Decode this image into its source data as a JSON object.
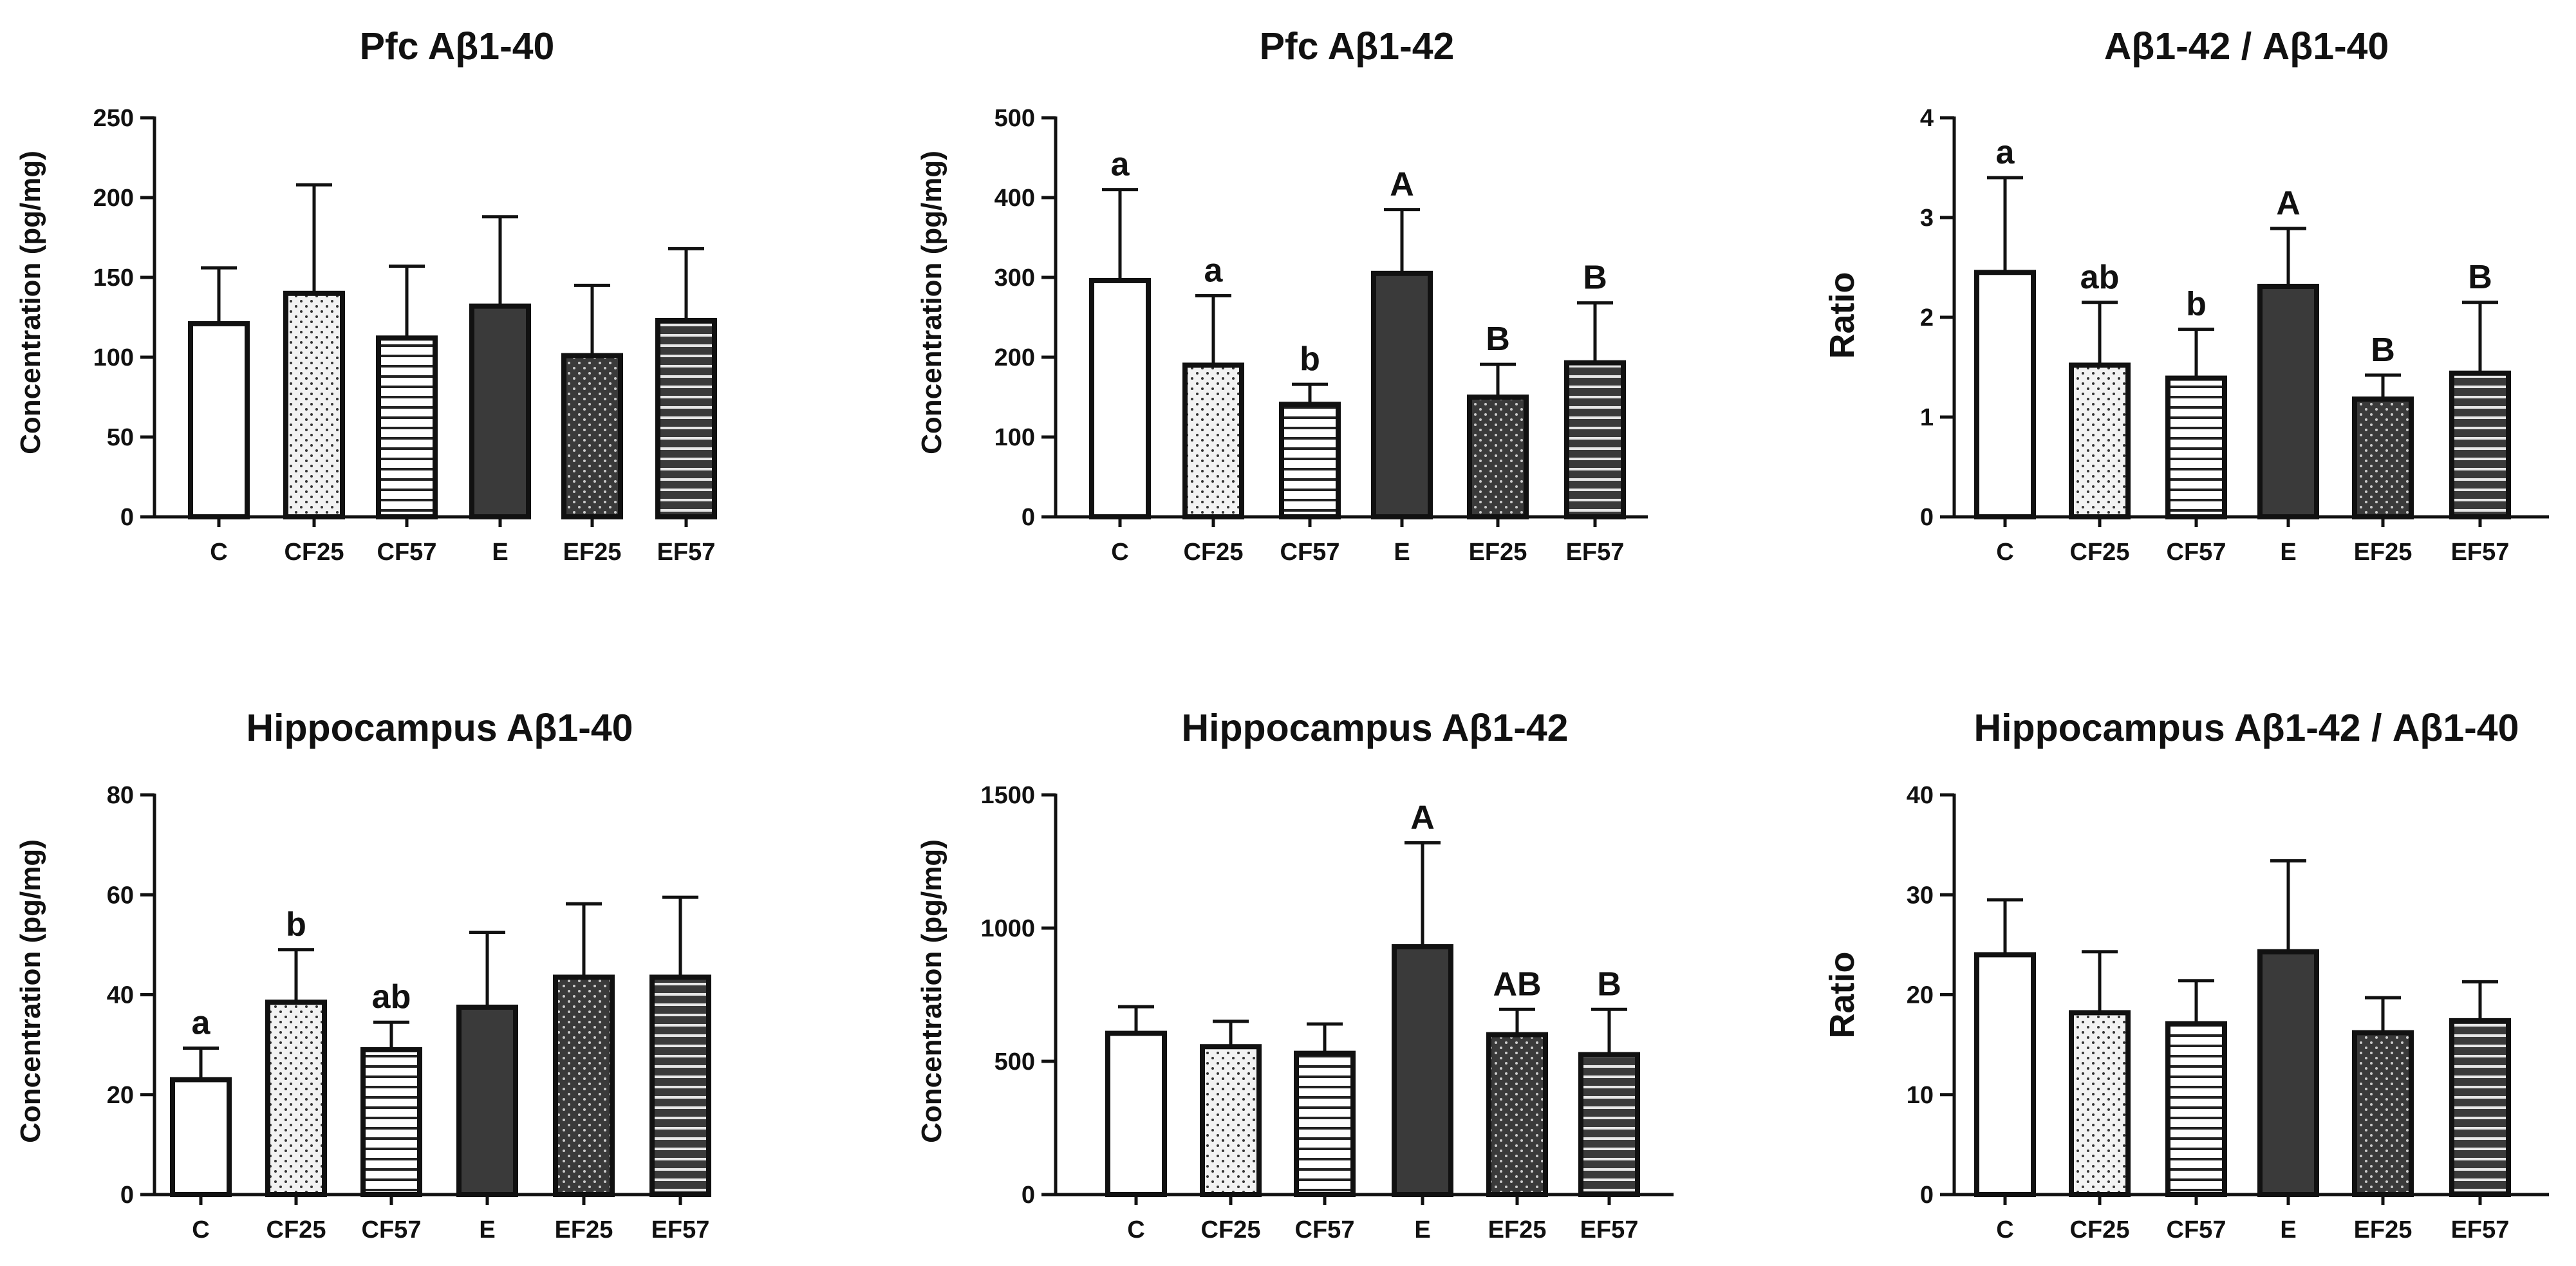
{
  "chart_data": [
    {
      "type": "bar",
      "title": "Pfc Aβ1-40",
      "ylabel": "Concentration (pg/mg)",
      "categories": [
        "C",
        "CF25",
        "CF57",
        "E",
        "EF25",
        "EF57"
      ],
      "values": [
        121,
        140,
        112,
        132,
        101,
        123
      ],
      "errors": [
        35,
        68,
        45,
        56,
        44,
        45
      ],
      "letters": [
        "",
        "",
        "",
        "",
        "",
        ""
      ],
      "ylim": [
        0,
        250
      ],
      "yticks": [
        0,
        50,
        100,
        150,
        200,
        250
      ]
    },
    {
      "type": "bar",
      "title": "Pfc Aβ1-42",
      "ylabel": "Concentration (pg/mg)",
      "categories": [
        "C",
        "CF25",
        "CF57",
        "E",
        "EF25",
        "EF57"
      ],
      "values": [
        296,
        190,
        141,
        305,
        150,
        193
      ],
      "errors": [
        114,
        87,
        25,
        80,
        41,
        75
      ],
      "letters": [
        "a",
        "a",
        "b",
        "A",
        "B",
        "B"
      ],
      "ylim": [
        0,
        500
      ],
      "yticks": [
        0,
        100,
        200,
        300,
        400,
        500
      ]
    },
    {
      "type": "bar",
      "title": "Aβ1-42 / Aβ1-40",
      "ylabel": "Ratio",
      "categories": [
        "C",
        "CF25",
        "CF57",
        "E",
        "EF25",
        "EF57"
      ],
      "values": [
        2.45,
        1.52,
        1.39,
        2.31,
        1.18,
        1.44
      ],
      "errors": [
        0.95,
        0.63,
        0.49,
        0.58,
        0.24,
        0.71
      ],
      "letters": [
        "a",
        "ab",
        "b",
        "A",
        "B",
        "B"
      ],
      "ylim": [
        0,
        4
      ],
      "yticks": [
        0,
        1,
        2,
        3,
        4
      ]
    },
    {
      "type": "bar",
      "title": "Hippocampus Aβ1-40",
      "ylabel": "Concentration (pg/mg)",
      "categories": [
        "C",
        "CF25",
        "CF57",
        "E",
        "EF25",
        "EF57"
      ],
      "values": [
        23,
        38.5,
        29,
        37.5,
        43.5,
        43.5
      ],
      "errors": [
        6.3,
        10.5,
        5.5,
        15,
        14.7,
        16
      ],
      "letters": [
        "a",
        "b",
        "ab",
        "",
        "",
        ""
      ],
      "ylim": [
        0,
        80
      ],
      "yticks": [
        0,
        20,
        40,
        60,
        80
      ]
    },
    {
      "type": "bar",
      "title": "Hippocampus Aβ1-42",
      "ylabel": "Concentration (pg/mg)",
      "categories": [
        "C",
        "CF25",
        "CF57",
        "E",
        "EF25",
        "EF57"
      ],
      "values": [
        605,
        555,
        530,
        930,
        600,
        525
      ],
      "errors": [
        100,
        95,
        110,
        390,
        95,
        170
      ],
      "letters": [
        "",
        "",
        "",
        "A",
        "AB",
        "B"
      ],
      "ylim": [
        0,
        1500
      ],
      "yticks": [
        0,
        500,
        1000,
        1500
      ]
    },
    {
      "type": "bar",
      "title": "Hippocampus Aβ1-42 / Aβ1-40",
      "ylabel": "Ratio",
      "categories": [
        "C",
        "CF25",
        "CF57",
        "E",
        "EF25",
        "EF57"
      ],
      "values": [
        24,
        18.2,
        17.1,
        24.3,
        16.2,
        17.4
      ],
      "errors": [
        5.5,
        6.1,
        4.3,
        9.1,
        3.5,
        3.9
      ],
      "letters": [
        "",
        "",
        "",
        "",
        "",
        ""
      ],
      "ylim": [
        0,
        40
      ],
      "yticks": [
        0,
        10,
        20,
        30,
        40
      ]
    }
  ],
  "palette": {
    "ink": "#111111",
    "white_fill": "#ffffff",
    "light_fill": "#f2f2f2",
    "dark_fill": "#3a3a3a",
    "dots_on_light": "#333333",
    "dots_on_dark": "#cccccc"
  },
  "bar_patterns": [
    "solid-white",
    "dots-light",
    "hlines-light",
    "solid-dark",
    "dots-dark",
    "hlines-dark"
  ]
}
